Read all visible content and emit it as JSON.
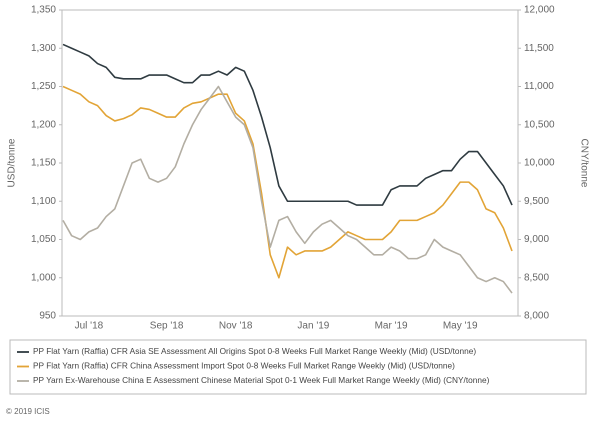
{
  "chart_data": {
    "type": "line",
    "categories": [
      null,
      null,
      null,
      "Jul '18",
      null,
      null,
      null,
      null,
      null,
      null,
      null,
      null,
      "Sep '18",
      null,
      null,
      null,
      null,
      null,
      null,
      null,
      "Nov '18",
      null,
      null,
      null,
      null,
      null,
      null,
      null,
      null,
      "Jan '19",
      null,
      null,
      null,
      null,
      null,
      null,
      null,
      null,
      "Mar '19",
      null,
      null,
      null,
      null,
      null,
      null,
      null,
      "May '19",
      null,
      null,
      null,
      null,
      null,
      null
    ],
    "ylabel": "USD/tonne",
    "y2label": "CNY/tonne",
    "ylim": [
      950,
      1350
    ],
    "yticks": [
      950,
      {
        "value": 1000,
        "label": "1,000"
      },
      {
        "value": 1050,
        "label": "1,050"
      },
      {
        "value": 1100,
        "label": "1,100"
      },
      {
        "value": 1150,
        "label": "1,150"
      },
      {
        "value": 1200,
        "label": "1,200"
      },
      {
        "value": 1250,
        "label": "1,250"
      },
      {
        "value": 1300,
        "label": "1,300"
      },
      {
        "value": 1350,
        "label": "1,350"
      }
    ],
    "y2lim": [
      8000,
      12000
    ],
    "y2ticks": [
      {
        "value": 8000,
        "label": "8,000"
      },
      {
        "value": 8500,
        "label": "8,500"
      },
      {
        "value": 9000,
        "label": "9,000"
      },
      {
        "value": 9500,
        "label": "9,500"
      },
      {
        "value": 10000,
        "label": "10,000"
      },
      {
        "value": 10500,
        "label": "10,500"
      },
      {
        "value": 11000,
        "label": "11,000"
      },
      {
        "value": 11500,
        "label": "11,500"
      },
      {
        "value": 12000,
        "label": "12,000"
      }
    ],
    "series": [
      {
        "name": "PP Flat Yarn (Raffia) CFR Asia SE Assessment All Origins Spot 0-8 Weeks Full Market Range Weekly (Mid) (USD/tonne)",
        "color": "#2f3b41",
        "values": [
          1305,
          1300,
          1295,
          1290,
          1280,
          1275,
          1262,
          1260,
          1260,
          1260,
          1265,
          1265,
          1265,
          1260,
          1255,
          1255,
          1265,
          1265,
          1270,
          1265,
          1275,
          1270,
          1245,
          1210,
          1170,
          1120,
          1100,
          1100,
          1100,
          1100,
          1100,
          1100,
          1100,
          1100,
          1095,
          1095,
          1095,
          1095,
          1115,
          1120,
          1120,
          1120,
          1130,
          1135,
          1140,
          1140,
          1155,
          1165,
          1165,
          1150,
          1135,
          1120,
          1095
        ]
      },
      {
        "name": "PP Flat Yarn (Raffia) CFR China Assessment Import Spot 0-8 Weeks Full Market Range Weekly (Mid) (USD/tonne)",
        "color": "#e2a436",
        "values": [
          1250,
          1245,
          1240,
          1230,
          1225,
          1212,
          1205,
          1208,
          1213,
          1222,
          1220,
          1215,
          1210,
          1210,
          1222,
          1228,
          1230,
          1235,
          1240,
          1240,
          1215,
          1205,
          1175,
          1110,
          1030,
          1000,
          1040,
          1030,
          1035,
          1035,
          1035,
          1040,
          1050,
          1060,
          1055,
          1050,
          1050,
          1050,
          1060,
          1075,
          1075,
          1075,
          1080,
          1085,
          1095,
          1110,
          1125,
          1125,
          1115,
          1090,
          1085,
          1065,
          1035
        ]
      },
      {
        "name": "PP Yarn Ex-Warehouse China E Assessment Chinese Material Spot 0-1 Week Full Market Range Weekly (Mid) (CNY/tonne)",
        "color": "#b3aea3",
        "axis": "y2",
        "values": [
          9250,
          9050,
          9000,
          9100,
          9150,
          9300,
          9400,
          9700,
          10000,
          10050,
          9800,
          9750,
          9800,
          9950,
          10250,
          10500,
          10700,
          10850,
          11000,
          10800,
          10600,
          10500,
          10200,
          9500,
          8900,
          9250,
          9300,
          9100,
          8950,
          9100,
          9200,
          9250,
          9150,
          9050,
          9000,
          8900,
          8800,
          8800,
          8900,
          8850,
          8750,
          8750,
          8800,
          9000,
          8900,
          8850,
          8800,
          8650,
          8500,
          8450,
          8500,
          8450,
          8300
        ]
      }
    ]
  },
  "footer": "© 2019 ICIS"
}
